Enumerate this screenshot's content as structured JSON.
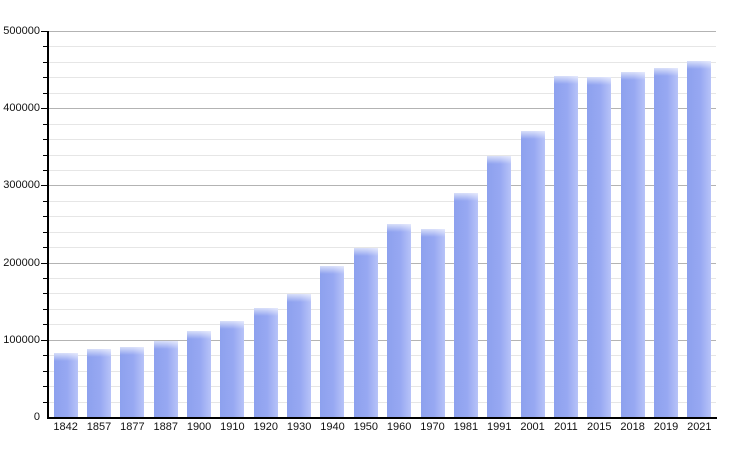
{
  "chart_data": {
    "type": "bar",
    "title": "",
    "xlabel": "",
    "ylabel": "",
    "categories": [
      "1842",
      "1857",
      "1877",
      "1887",
      "1900",
      "1910",
      "1920",
      "1930",
      "1940",
      "1950",
      "1960",
      "1970",
      "1981",
      "1991",
      "2001",
      "2011",
      "2015",
      "2018",
      "2019",
      "2021"
    ],
    "values": [
      83000,
      88000,
      91000,
      98000,
      112000,
      125000,
      141000,
      159000,
      195000,
      219000,
      250000,
      244000,
      290000,
      338000,
      371000,
      442000,
      440000,
      447000,
      452000,
      461000
    ],
    "ylim": [
      0,
      500000
    ],
    "y_major_step": 100000,
    "y_minor_step": 20000,
    "y_tick_labels": [
      "0",
      "100000",
      "200000",
      "300000",
      "400000",
      "500000"
    ],
    "grid": "horizontal major+minor, no vertical grid",
    "legend_position": "none",
    "colors": {
      "bar_fill": "#99aaf2",
      "bar_fill_light_edge": "#b7c3f8",
      "major_grid": "#b3b3b3",
      "minor_grid": "#e6e6e6",
      "axis": "#000000",
      "label_text": "#111111",
      "background": "#ffffff"
    }
  }
}
